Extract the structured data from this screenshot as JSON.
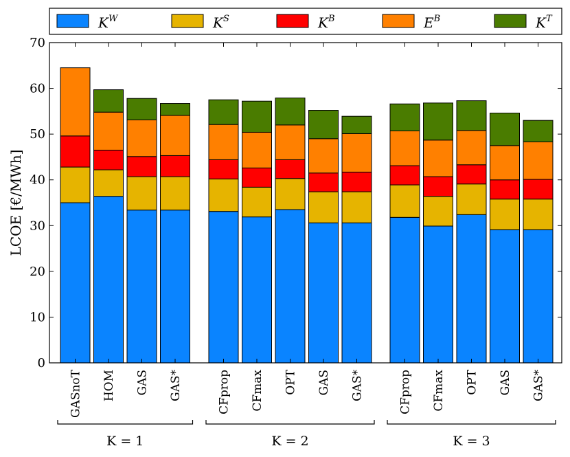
{
  "chart_data": {
    "type": "stacked_bar",
    "ylabel": "LCOE [€/MWh]",
    "ylim": [
      0,
      70
    ],
    "yticks": [
      "0",
      "10",
      "20",
      "30",
      "40",
      "50",
      "60",
      "70"
    ],
    "grid": false,
    "legend_position": "top",
    "series": [
      {
        "name": "K",
        "sup": "W",
        "color": "#0a84ff"
      },
      {
        "name": "K",
        "sup": "S",
        "color": "#e6b400"
      },
      {
        "name": "K",
        "sup": "B",
        "color": "#ff0000"
      },
      {
        "name": "E",
        "sup": "B",
        "color": "#ff8000"
      },
      {
        "name": "K",
        "sup": "T",
        "color": "#4a7c00"
      }
    ],
    "groups": [
      {
        "label": "K = 1",
        "bars": [
          {
            "label": "GASnoT",
            "values": [
              35.0,
              7.8,
              6.8,
              14.9,
              0.0
            ]
          },
          {
            "label": "HOM",
            "values": [
              36.4,
              5.8,
              4.3,
              8.3,
              4.9
            ]
          },
          {
            "label": "GAS",
            "values": [
              33.4,
              7.3,
              4.4,
              8.0,
              4.7
            ]
          },
          {
            "label": "GAS*",
            "values": [
              33.4,
              7.3,
              4.6,
              8.8,
              2.6
            ]
          }
        ]
      },
      {
        "label": "K = 2",
        "bars": [
          {
            "label": "CFprop",
            "values": [
              33.1,
              7.1,
              4.2,
              7.7,
              5.4
            ]
          },
          {
            "label": "CFmax",
            "values": [
              31.9,
              6.5,
              4.2,
              7.8,
              6.8
            ]
          },
          {
            "label": "OPT",
            "values": [
              33.5,
              6.8,
              4.1,
              7.6,
              5.9
            ]
          },
          {
            "label": "GAS",
            "values": [
              30.6,
              6.8,
              4.1,
              7.5,
              6.2
            ]
          },
          {
            "label": "GAS*",
            "values": [
              30.6,
              6.8,
              4.3,
              8.4,
              3.8
            ]
          }
        ]
      },
      {
        "label": "K = 3",
        "bars": [
          {
            "label": "CFprop",
            "values": [
              31.8,
              7.1,
              4.2,
              7.6,
              5.9
            ]
          },
          {
            "label": "CFmax",
            "values": [
              29.9,
              6.5,
              4.3,
              8.0,
              8.1
            ]
          },
          {
            "label": "OPT",
            "values": [
              32.4,
              6.7,
              4.2,
              7.5,
              6.5
            ]
          },
          {
            "label": "GAS",
            "values": [
              29.1,
              6.7,
              4.2,
              7.5,
              7.1
            ]
          },
          {
            "label": "GAS*",
            "values": [
              29.1,
              6.7,
              4.3,
              8.2,
              4.7
            ]
          }
        ]
      }
    ]
  }
}
